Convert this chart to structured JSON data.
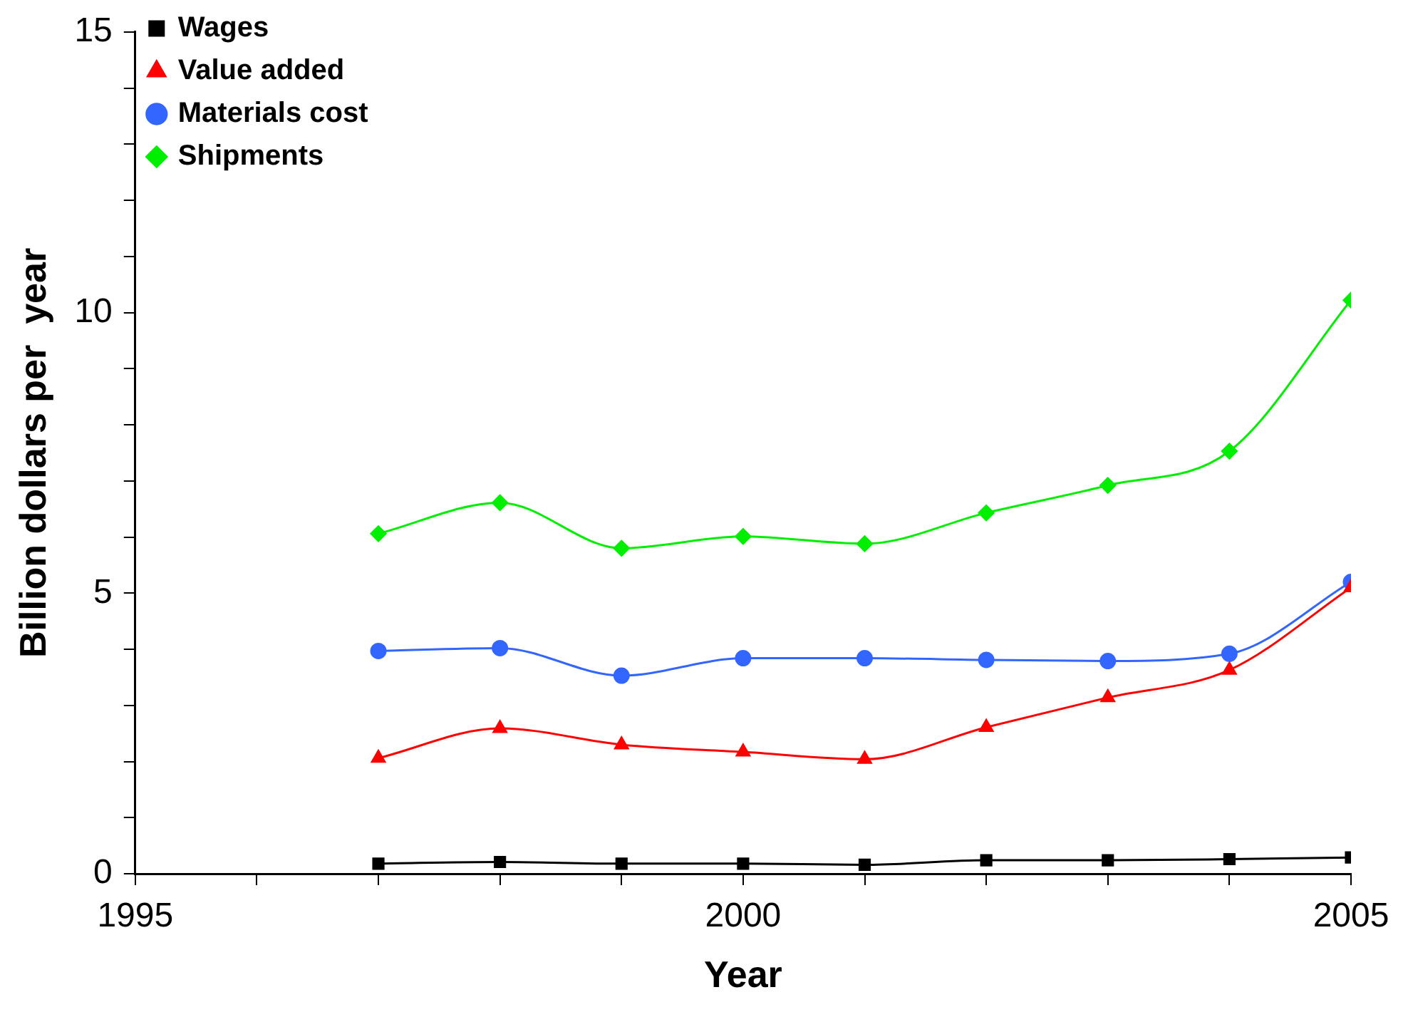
{
  "chart_data": {
    "type": "line",
    "xlabel": "Year",
    "ylabel": "Billion dollars per  year",
    "x": [
      1997,
      1998,
      1999,
      2000,
      2001,
      2002,
      2003,
      2004,
      2005
    ],
    "series": [
      {
        "name": "Wages",
        "color": "#000000",
        "marker": "square",
        "values": [
          0.18,
          0.21,
          0.18,
          0.18,
          0.16,
          0.24,
          0.24,
          0.26,
          0.29
        ]
      },
      {
        "name": "Value added",
        "color": "#ff0000",
        "marker": "triangle",
        "values": [
          2.06,
          2.59,
          2.3,
          2.17,
          2.04,
          2.61,
          3.14,
          3.63,
          5.1
        ]
      },
      {
        "name": "Materials cost",
        "color": "#3366ff",
        "marker": "circle",
        "values": [
          3.97,
          4.02,
          3.53,
          3.84,
          3.84,
          3.81,
          3.79,
          3.92,
          5.2
        ]
      },
      {
        "name": "Shipments",
        "color": "#00ee00",
        "marker": "diamond",
        "values": [
          6.06,
          6.61,
          5.8,
          6.01,
          5.88,
          6.43,
          6.92,
          7.53,
          10.22
        ]
      }
    ],
    "xlim": [
      1995,
      2005
    ],
    "xticks": [
      1995,
      {
        "value": 1996,
        "label": null
      },
      {
        "value": 1997,
        "label": null
      },
      {
        "value": 1998,
        "label": null
      },
      {
        "value": 1999,
        "label": null
      },
      2000,
      {
        "value": 2001,
        "label": null
      },
      {
        "value": 2002,
        "label": null
      },
      {
        "value": 2003,
        "label": null
      },
      {
        "value": 2004,
        "label": null
      },
      2005
    ],
    "ylim": [
      0,
      15
    ],
    "yticks": [
      0,
      {
        "value": 1,
        "label": null
      },
      {
        "value": 2,
        "label": null
      },
      {
        "value": 3,
        "label": null
      },
      {
        "value": 4,
        "label": null
      },
      5,
      {
        "value": 6,
        "label": null
      },
      {
        "value": 7,
        "label": null
      },
      {
        "value": 8,
        "label": null
      },
      {
        "value": 9,
        "label": null
      },
      10,
      {
        "value": 11,
        "label": null
      },
      {
        "value": 12,
        "label": null
      },
      {
        "value": 13,
        "label": null
      },
      {
        "value": 14,
        "label": null
      },
      15
    ],
    "grid": false,
    "legend": "top left"
  }
}
